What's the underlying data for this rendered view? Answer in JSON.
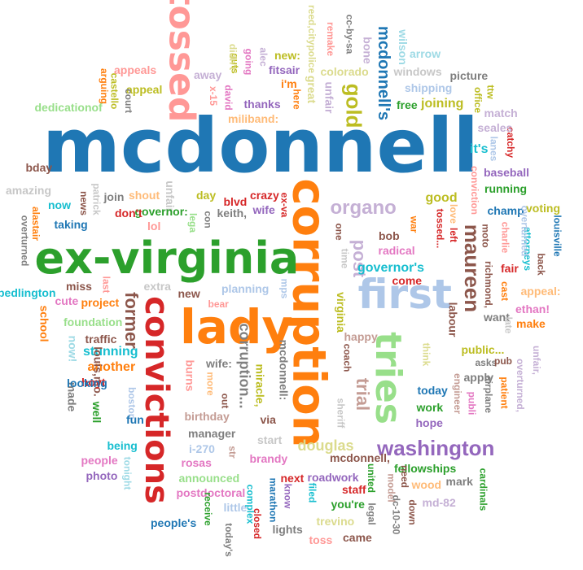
{
  "words": [
    "mcdonnell",
    "corruption",
    "ex-virginia",
    "first",
    "convictions",
    "lady",
    "tossed",
    "tries",
    "washington",
    "maureen",
    "gold",
    "mcdonnell's",
    "organo",
    "post",
    "trial",
    "former",
    "douglas",
    "corruption...",
    "virginia",
    "governor's",
    "mcdonnell:",
    "mcdonnell,",
    "fellowships",
    "it's",
    "burns",
    "another",
    "stunning",
    "wife:",
    "planning",
    "miracle,",
    "foundation",
    "project",
    "postdoctoral",
    "announced",
    "brandy",
    "good",
    "running",
    "baseball",
    "joining",
    "shipping",
    "free",
    "windows",
    "picture",
    "arrow",
    "colorado",
    "wilson",
    "bone",
    "cc-by-sa",
    "remake",
    "reed,citypolice",
    "great",
    "unfair",
    "here",
    "i'm",
    "fitsair",
    "new:",
    "alec",
    "going",
    "guts",
    "didn't",
    "david",
    "away",
    "x-15",
    "thanks",
    "miliband:",
    "appeals",
    "appeal",
    "court",
    "castello",
    "arguing",
    "dedicationof",
    "bday",
    "amazing",
    "now",
    "news",
    "patrick",
    "join",
    "shout",
    "unfair:",
    "day",
    "crazy",
    "ex-va",
    "wife",
    "governor:",
    "keith,",
    "con",
    "blvd",
    "lega",
    "taking",
    "alastair",
    "overturned",
    "bedlington",
    "miss",
    "last",
    "cute",
    "school",
    "extra",
    "new",
    "bear",
    "traffic",
    "don't",
    "lol",
    "louis,mo.",
    "hoyt",
    "well",
    "made",
    "looking",
    "now!",
    "boston",
    "fun",
    "being",
    "tonight",
    "people",
    "photo",
    "people's",
    "receive",
    "little",
    "complex",
    "closed",
    "lights",
    "toss",
    "came",
    "today's",
    "manager",
    "start",
    "rosas",
    "i-270",
    "birthday",
    "via",
    "more",
    "out",
    "str",
    "marathon",
    "next",
    "know",
    "filed",
    "roadwork",
    "staff",
    "you're",
    "united",
    "legal",
    "model",
    "need",
    "wood",
    "mark",
    "md-82",
    "dc-10-30",
    "down",
    "trevino",
    "hope",
    "work",
    "today",
    "sheriff",
    "coach",
    "happy",
    "engineer",
    "publi",
    "apply",
    "public...",
    "asks",
    "pub",
    "think",
    "labour",
    "airplane",
    "patient",
    "overturned,",
    "unfair,",
    "cardinals",
    "come",
    "radical",
    "bob",
    "war",
    "tossed...",
    "love",
    "left",
    "one",
    "time",
    "mps",
    "richmond,",
    "moto",
    "charlie",
    "want",
    "late",
    "cast",
    "fair",
    "appeal:",
    "ethan!",
    "make",
    "back",
    "attorneys",
    "louisville",
    "voting",
    "champ",
    "overturned",
    "conviction",
    "lanes",
    "catchy",
    "seales",
    "match",
    "office",
    "ttw"
  ]
}
